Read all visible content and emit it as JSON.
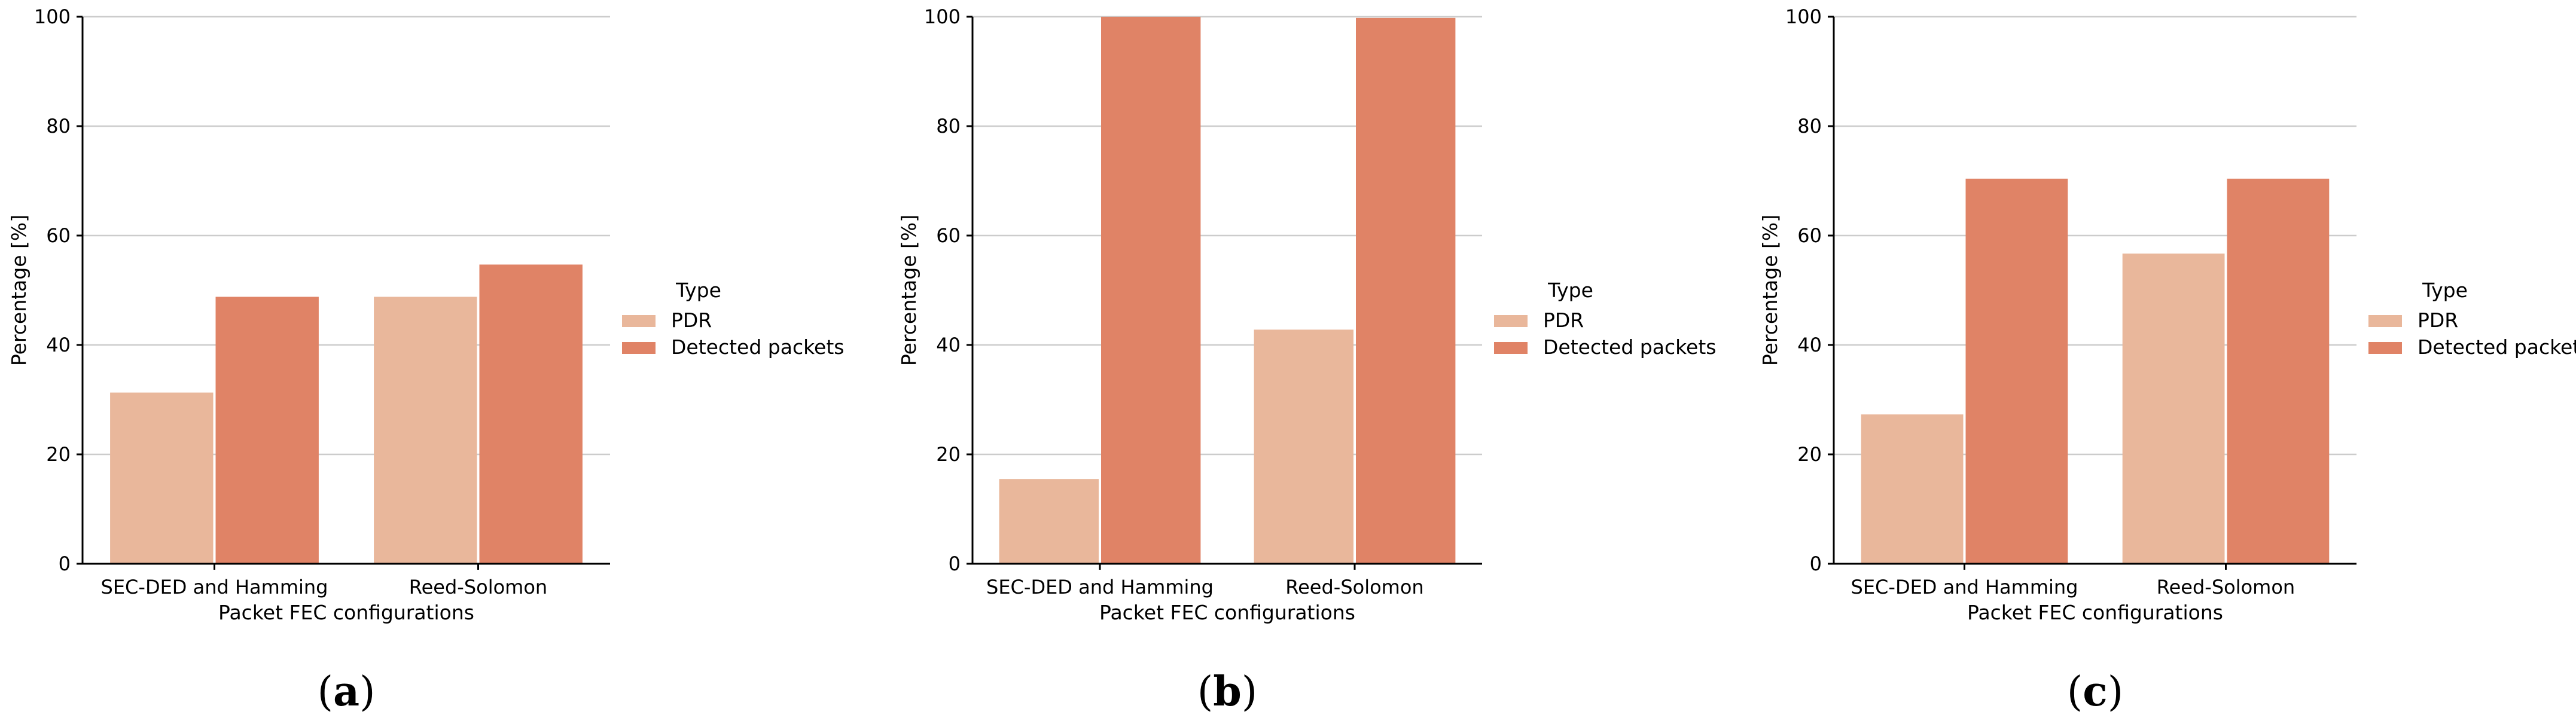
{
  "chart_data": [
    {
      "type": "bar",
      "caption": "(a)",
      "categories": [
        "SEC-DED and Hamming",
        "Reed-Solomon"
      ],
      "series": [
        {
          "name": "PDR",
          "values": [
            31.3,
            48.8
          ]
        },
        {
          "name": "Detected packets",
          "values": [
            48.8,
            54.7
          ]
        }
      ],
      "xlabel": "Packet FEC configurations",
      "ylabel": "Percentage [%]",
      "ylim": [
        0,
        100
      ],
      "yticks": [
        0,
        20,
        40,
        60,
        80,
        100
      ],
      "legend_title": "Type",
      "legend_position": "right",
      "grid": "horizontal"
    },
    {
      "type": "bar",
      "caption": "(b)",
      "categories": [
        "SEC-DED and Hamming",
        "Reed-Solomon"
      ],
      "series": [
        {
          "name": "PDR",
          "values": [
            15.5,
            42.8
          ]
        },
        {
          "name": "Detected packets",
          "values": [
            100,
            99.8
          ]
        }
      ],
      "xlabel": "Packet FEC configurations",
      "ylabel": "Percentage [%]",
      "ylim": [
        0,
        100
      ],
      "yticks": [
        0,
        20,
        40,
        60,
        80,
        100
      ],
      "legend_title": "Type",
      "legend_position": "right",
      "grid": "horizontal"
    },
    {
      "type": "bar",
      "caption": "(c)",
      "categories": [
        "SEC-DED and Hamming",
        "Reed-Solomon"
      ],
      "series": [
        {
          "name": "PDR",
          "values": [
            27.3,
            56.7
          ]
        },
        {
          "name": "Detected packets",
          "values": [
            70.4,
            70.4
          ]
        }
      ],
      "xlabel": "Packet FEC configurations",
      "ylabel": "Percentage [%]",
      "ylim": [
        0,
        100
      ],
      "yticks": [
        0,
        20,
        40,
        60,
        80,
        100
      ],
      "legend_title": "Type",
      "legend_position": "right",
      "grid": "horizontal"
    }
  ],
  "colors": {
    "PDR": "#e9b79b",
    "Detected packets": "#e08366",
    "grid": "#cccccc",
    "axis": "#000000"
  }
}
